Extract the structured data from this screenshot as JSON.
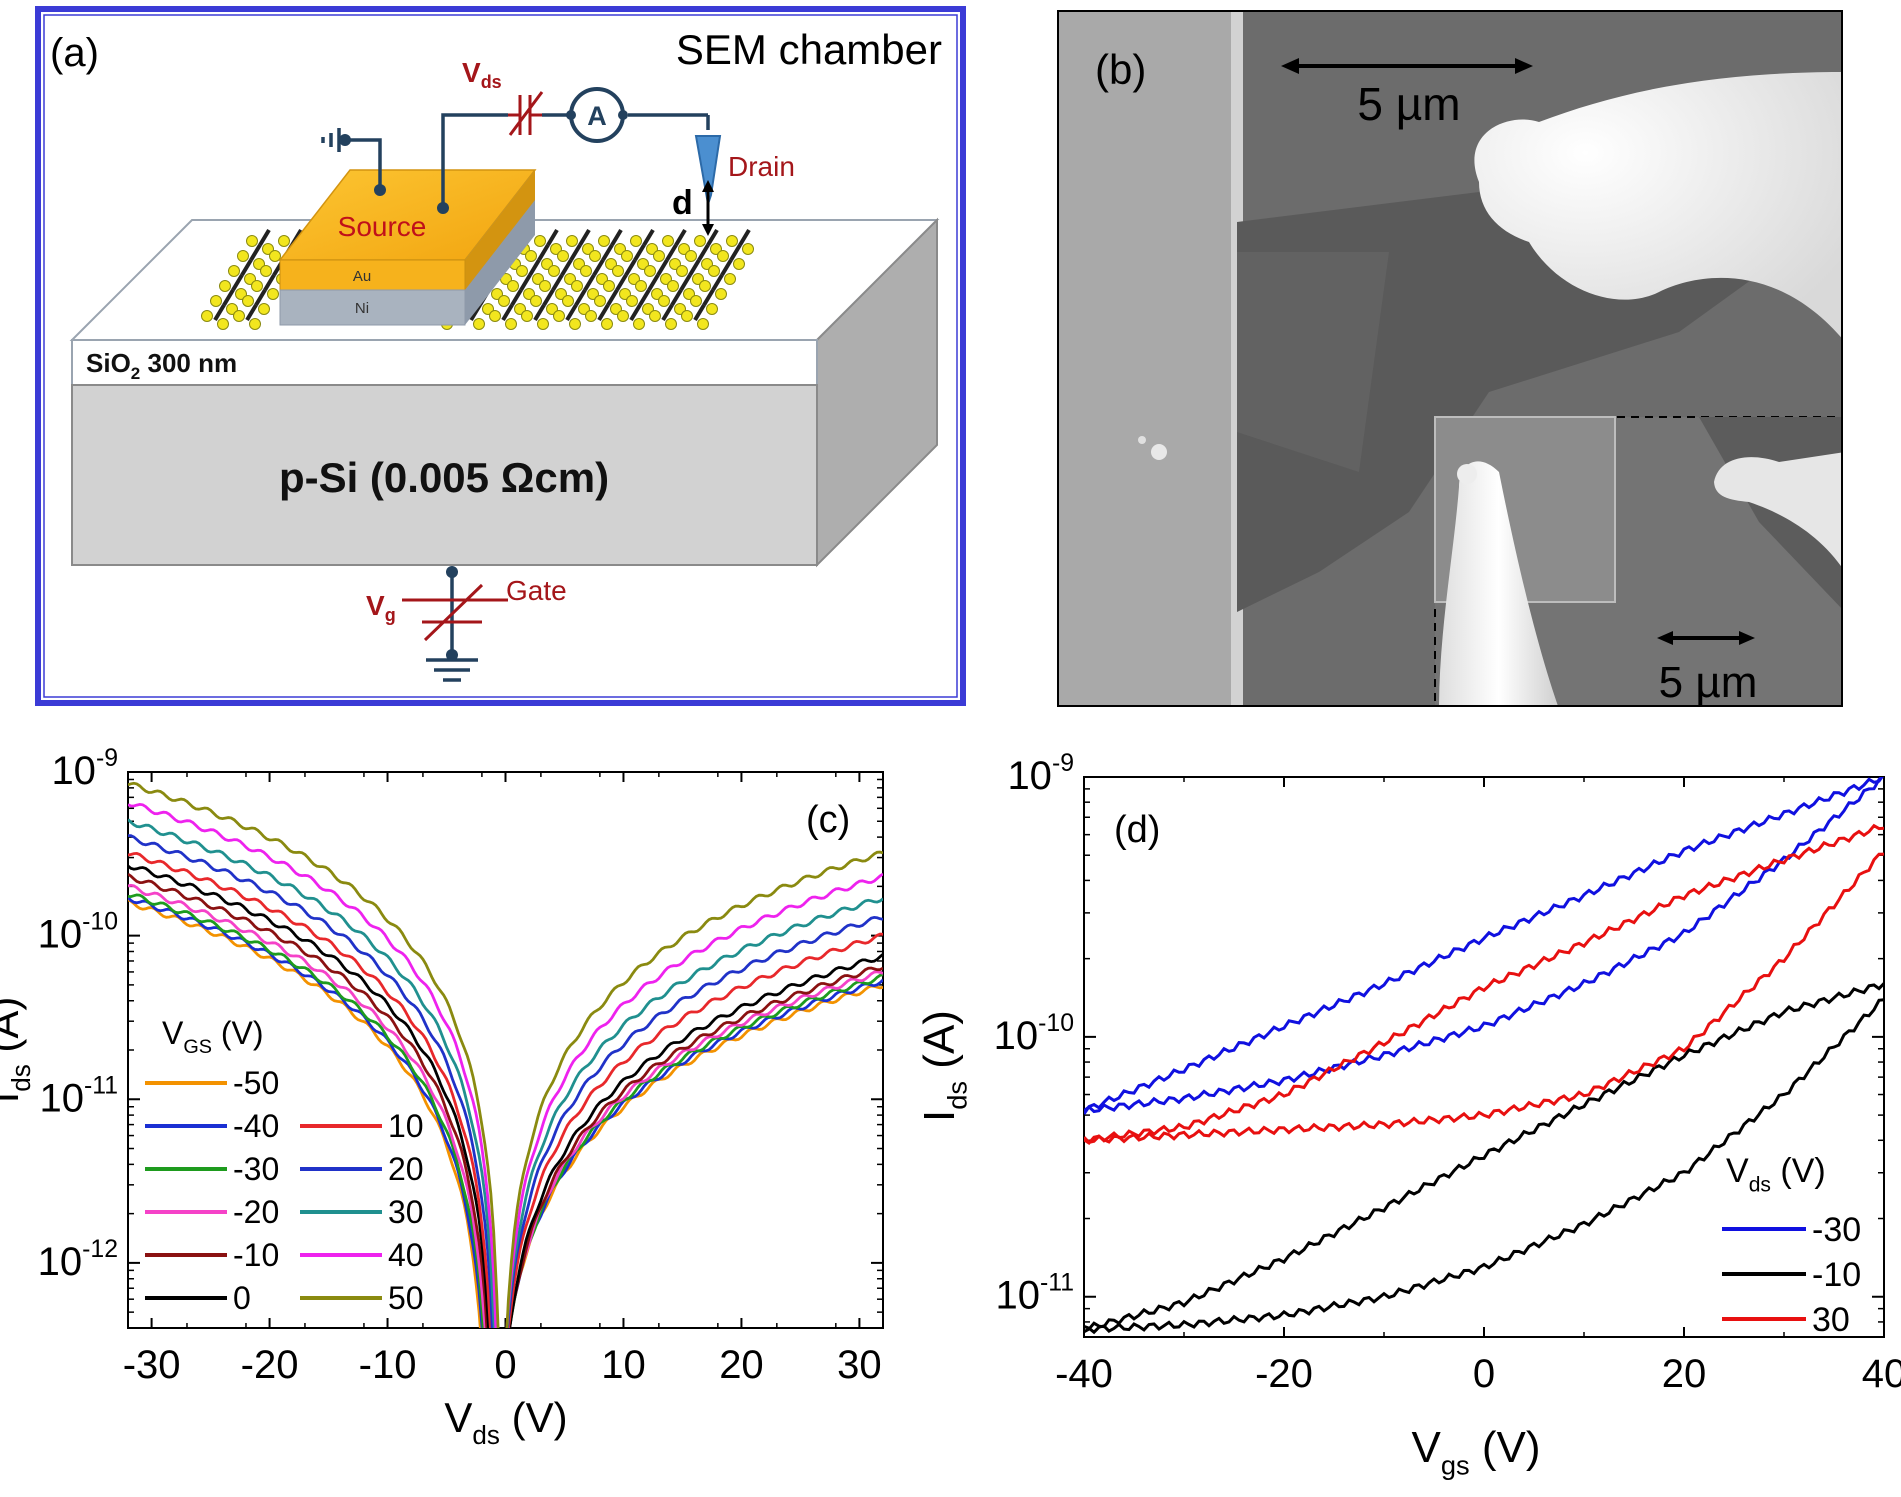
{
  "panel_a": {
    "label": "(a)",
    "chamber": "SEM chamber",
    "vds": "V",
    "vds_sub": "ds",
    "ammeter": "A",
    "drain": "Drain",
    "d": "d",
    "source": "Source",
    "au": "Au",
    "ni": "Ni",
    "sio2": "SiO",
    "sio2_sub": "2",
    "sio2_rest": " 300 nm",
    "substrate": "p-Si (0.005 Ωcm)",
    "vg": "V",
    "vg_sub": "g",
    "gate": "Gate",
    "colors": {
      "frame": "#3b3bd6",
      "wire": "#23415e",
      "red": "#a4161a",
      "gold": "#f6b21c",
      "probe": "#4b8fd0"
    }
  },
  "panel_b": {
    "label": "(b)",
    "scale_top": "5 µm",
    "scale_inset": "5 µm"
  },
  "chart_data": [
    {
      "panel": "(c)",
      "type": "line",
      "xlabel": "V",
      "xlabel_sub": "ds",
      "xlabel_unit": " (V)",
      "ylabel": "I",
      "ylabel_sub": "ds",
      "ylabel_unit": " (A)",
      "xlim": [
        -32,
        32
      ],
      "ylim": [
        4e-13,
        1e-09
      ],
      "yscale": "log",
      "xticks": [
        -30,
        -20,
        -10,
        0,
        10,
        20,
        30
      ],
      "ytick_labels": [
        {
          "mant": "10",
          "exp": "-9"
        },
        {
          "mant": "10",
          "exp": "-10"
        },
        {
          "mant": "10",
          "exp": "-11"
        },
        {
          "mant": "10",
          "exp": "-12"
        }
      ],
      "legend_title": "V",
      "legend_title_sub": "GS",
      "legend_title_unit": " (V)",
      "legend_position": "lower-left",
      "series": [
        {
          "name": "-50",
          "color": "#f39200",
          "left": 1.6e-10,
          "right": 5e-11,
          "vmin": -1.4
        },
        {
          "name": "-40",
          "color": "#1a2fd3",
          "left": 1.7e-10,
          "right": 5.3e-11,
          "vmin": -1.3
        },
        {
          "name": "-30",
          "color": "#1e9b1e",
          "left": 1.8e-10,
          "right": 5.6e-11,
          "vmin": -1.2
        },
        {
          "name": "-20",
          "color": "#f542c8",
          "left": 2e-10,
          "right": 6e-11,
          "vmin": -1.1
        },
        {
          "name": "-10",
          "color": "#8a1111",
          "left": 2.3e-10,
          "right": 6.5e-11,
          "vmin": -1.0
        },
        {
          "name": "0",
          "color": "#000000",
          "left": 2.7e-10,
          "right": 7.5e-11,
          "vmin": -0.9
        },
        {
          "name": "10",
          "color": "#e8282b",
          "left": 3.2e-10,
          "right": 1e-10,
          "vmin": -0.8
        },
        {
          "name": "20",
          "color": "#2032c8",
          "left": 4e-10,
          "right": 1.3e-10,
          "vmin": -0.7
        },
        {
          "name": "30",
          "color": "#20908f",
          "left": 5e-10,
          "right": 1.7e-10,
          "vmin": -0.6
        },
        {
          "name": "40",
          "color": "#ee22ee",
          "left": 6.5e-10,
          "right": 2.3e-10,
          "vmin": -0.5
        },
        {
          "name": "50",
          "color": "#8a8a10",
          "left": 8.5e-10,
          "right": 3.2e-10,
          "vmin": -0.4
        }
      ]
    },
    {
      "panel": "(d)",
      "type": "line",
      "xlabel": "V",
      "xlabel_sub": "gs",
      "xlabel_unit": " (V)",
      "ylabel": "I",
      "ylabel_sub": "ds",
      "ylabel_unit": " (A)",
      "xlim": [
        -40,
        40
      ],
      "ylim": [
        7e-12,
        1e-09
      ],
      "yscale": "log",
      "xticks": [
        -40,
        -20,
        0,
        20,
        40
      ],
      "ytick_labels": [
        {
          "mant": "10",
          "exp": "-9"
        },
        {
          "mant": "10",
          "exp": "-10"
        },
        {
          "mant": "10",
          "exp": "-11"
        }
      ],
      "legend_title": "V",
      "legend_title_sub": "ds",
      "legend_title_unit": " (V)",
      "legend_position": "lower-right",
      "series": [
        {
          "name": "-30",
          "color": "#1010e0",
          "forward": [
            [
              -40,
              5.2e-11
            ],
            [
              -30,
              5.8e-11
            ],
            [
              -20,
              6.8e-11
            ],
            [
              -10,
              8.5e-11
            ],
            [
              0,
              1.1e-10
            ],
            [
              10,
              1.6e-10
            ],
            [
              20,
              2.5e-10
            ],
            [
              30,
              4.8e-10
            ],
            [
              40,
              1e-09
            ]
          ],
          "reverse": [
            [
              40,
              1e-09
            ],
            [
              30,
              7.2e-10
            ],
            [
              20,
              5.2e-10
            ],
            [
              10,
              3.5e-10
            ],
            [
              0,
              2.4e-10
            ],
            [
              -10,
              1.6e-10
            ],
            [
              -20,
              1.1e-10
            ],
            [
              -30,
              7.5e-11
            ],
            [
              -40,
              5.2e-11
            ]
          ]
        },
        {
          "name": "-10",
          "color": "#000000",
          "forward": [
            [
              -40,
              7.5e-12
            ],
            [
              -30,
              7.8e-12
            ],
            [
              -20,
              8.5e-12
            ],
            [
              -10,
              1e-11
            ],
            [
              0,
              1.3e-11
            ],
            [
              10,
              1.9e-11
            ],
            [
              20,
              3e-11
            ],
            [
              30,
              6e-11
            ],
            [
              40,
              1.4e-10
            ]
          ],
          "reverse": [
            [
              40,
              1.6e-10
            ],
            [
              30,
              1.25e-10
            ],
            [
              20,
              8.5e-11
            ],
            [
              10,
              5.5e-11
            ],
            [
              0,
              3.5e-11
            ],
            [
              -10,
              2.2e-11
            ],
            [
              -20,
              1.4e-11
            ],
            [
              -30,
              9.5e-12
            ],
            [
              -40,
              7.5e-12
            ]
          ]
        },
        {
          "name": "30",
          "color": "#e81010",
          "forward": [
            [
              -40,
              4e-11
            ],
            [
              -30,
              4.2e-11
            ],
            [
              -20,
              4.4e-11
            ],
            [
              -10,
              4.6e-11
            ],
            [
              0,
              5e-11
            ],
            [
              10,
              6e-11
            ],
            [
              20,
              9e-11
            ],
            [
              30,
              2e-10
            ],
            [
              40,
              5.2e-10
            ]
          ],
          "reverse": [
            [
              40,
              6.5e-10
            ],
            [
              30,
              4.8e-10
            ],
            [
              20,
              3.5e-10
            ],
            [
              10,
              2.3e-10
            ],
            [
              0,
              1.55e-10
            ],
            [
              -10,
              9.5e-11
            ],
            [
              -20,
              6e-11
            ],
            [
              -30,
              4.5e-11
            ],
            [
              -40,
              4e-11
            ]
          ]
        }
      ]
    }
  ]
}
